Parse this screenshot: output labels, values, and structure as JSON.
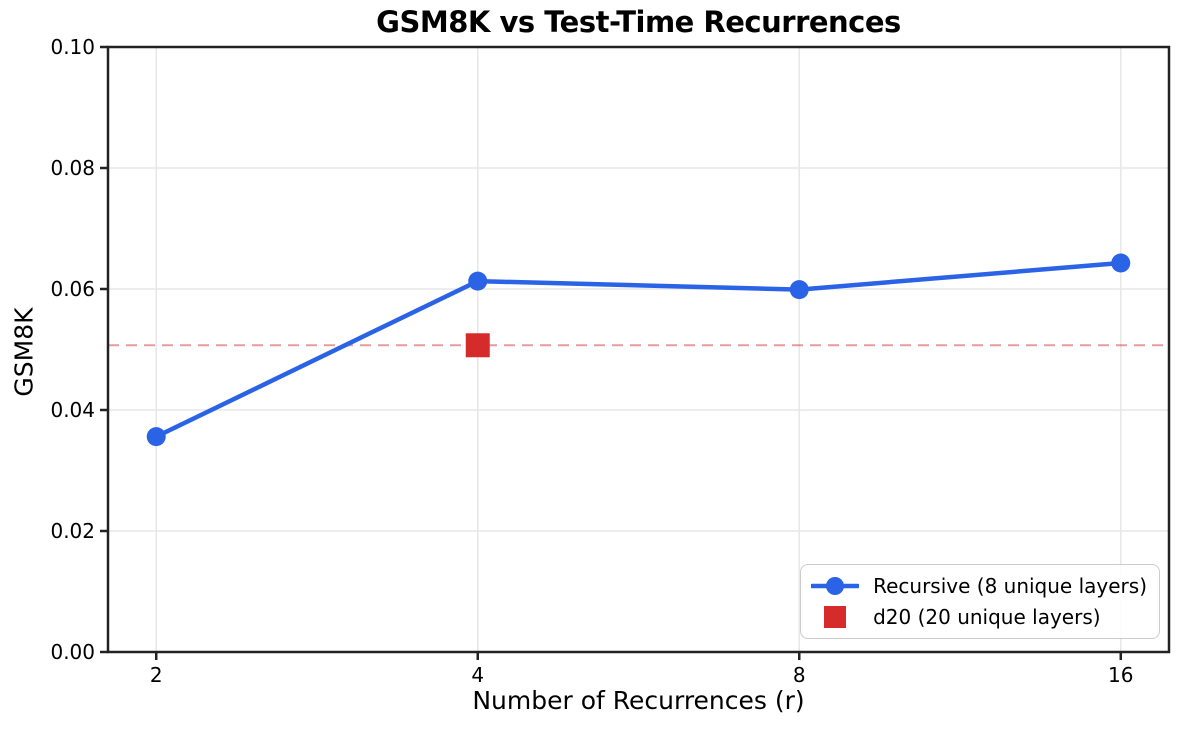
{
  "chart_data": {
    "type": "line",
    "title": "GSM8K vs Test-Time Recurrences",
    "xlabel": "Number of Recurrences (r)",
    "ylabel": "GSM8K",
    "x_scale": "log2",
    "x_ticks": [
      2,
      4,
      8,
      16
    ],
    "x_tick_labels": [
      "2",
      "4",
      "8",
      "16"
    ],
    "y_ticks": [
      0,
      0.02,
      0.04,
      0.06,
      0.08,
      0.1
    ],
    "y_tick_labels": [
      "0.00",
      "0.02",
      "0.04",
      "0.06",
      "0.08",
      "0.10"
    ],
    "ylim": [
      0,
      0.1
    ],
    "grid": true,
    "legend_position": "lower right",
    "series": [
      {
        "name": "Recursive (8 unique layers)",
        "type": "line",
        "marker": "circle",
        "color": "#2b63e6",
        "x": [
          2,
          4,
          8,
          16
        ],
        "y": [
          0.0356,
          0.0613,
          0.0599,
          0.0643
        ]
      },
      {
        "name": "d20 (20 unique layers)",
        "type": "scatter",
        "marker": "square",
        "color": "#d62b2b",
        "x": [
          4
        ],
        "y": [
          0.0507
        ]
      }
    ],
    "reference_line": {
      "y": 0.0507,
      "style": "dashed",
      "color": "rgba(214,43,43,0.48)"
    }
  },
  "colors": {
    "grid": "#e7e7e7",
    "spine": "#222222",
    "tick": "#222222",
    "text": "#000000",
    "background": "#ffffff"
  }
}
